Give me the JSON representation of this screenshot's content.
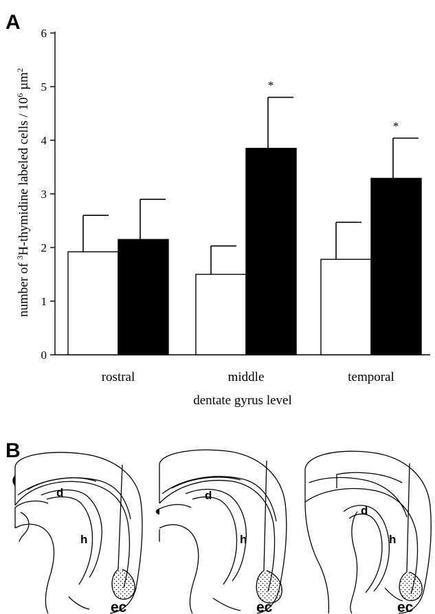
{
  "panel_a_letter": "A",
  "panel_b_letter": "B",
  "chart_data": {
    "type": "bar",
    "categories": [
      "rostral",
      "middle",
      "temporal"
    ],
    "series": [
      {
        "values": [
          1.92,
          1.5,
          1.78
        ],
        "errors": [
          0.68,
          0.53,
          0.69
        ],
        "color": "#ffffff"
      },
      {
        "values": [
          2.15,
          3.85,
          3.29
        ],
        "errors": [
          0.75,
          0.95,
          0.75
        ],
        "color": "#000000"
      }
    ],
    "significance": [
      "",
      "*",
      "*"
    ],
    "ylim": [
      0,
      6
    ],
    "yticks": [
      0,
      1,
      2,
      3,
      4,
      5,
      6
    ],
    "xlabel": "dentate gyrus level",
    "ylabel_parts": {
      "pre": "number of ",
      "sup1": "3",
      "mid": "H-thymidine labeled cells / 10",
      "sup2": "6",
      "post": " µm",
      "sup3": "2"
    }
  },
  "sections": [
    {
      "labels": {
        "d": "d",
        "h": "h",
        "ec": "ec"
      }
    },
    {
      "labels": {
        "d": "d",
        "h": "h",
        "ec": "ec"
      }
    },
    {
      "labels": {
        "d": "d",
        "h": "h",
        "ec": "ec"
      }
    }
  ]
}
